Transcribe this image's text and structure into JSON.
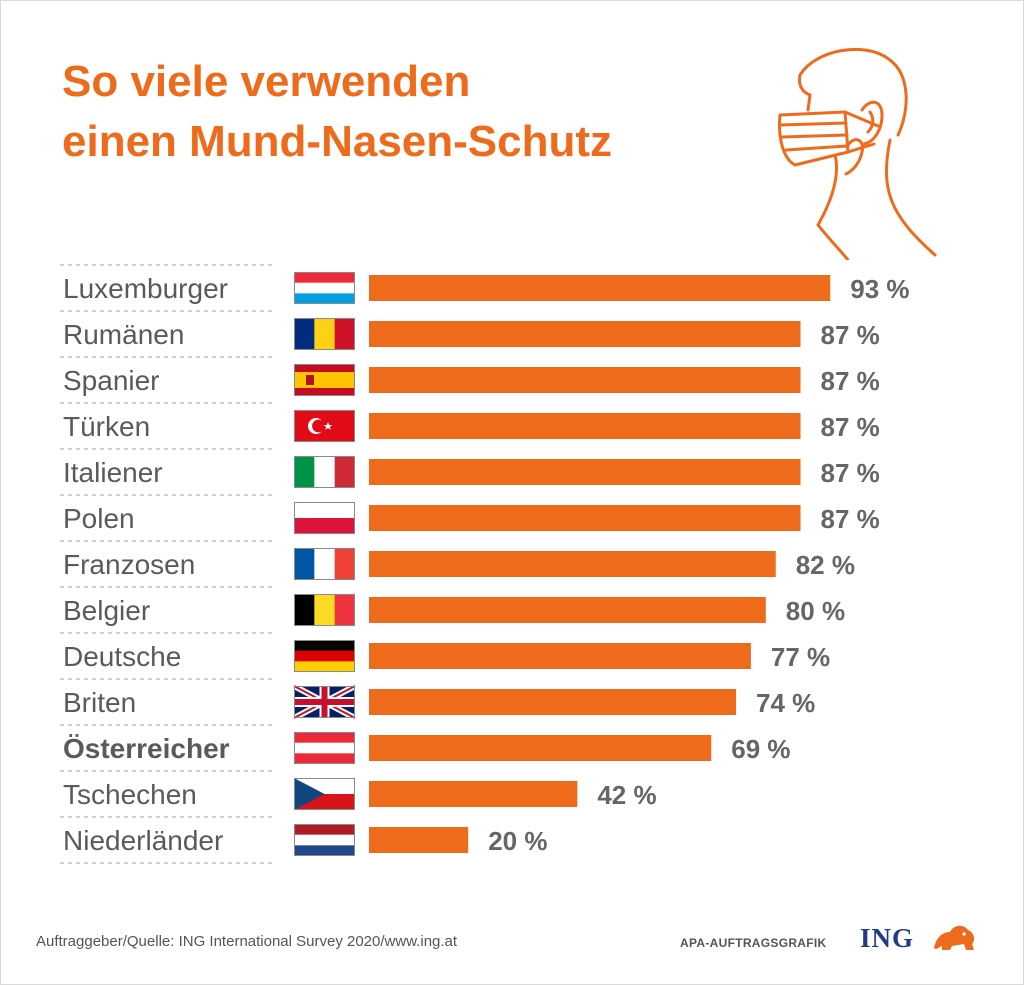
{
  "title": {
    "line1": "So viele verwenden",
    "line2": "einen Mund-Nasen-Schutz"
  },
  "colors": {
    "accent": "#ee6b1b",
    "label": "#5a5a5a",
    "value": "#666666",
    "brand": "#1f3c88"
  },
  "chart_data": {
    "type": "bar",
    "orientation": "horizontal",
    "title": "So viele verwenden einen Mund-Nasen-Schutz",
    "unit": "%",
    "xlim": [
      0,
      100
    ],
    "grid": false,
    "categories": [
      "Luxemburger",
      "Rumänen",
      "Spanier",
      "Türken",
      "Italiener",
      "Polen",
      "Franzosen",
      "Belgier",
      "Deutsche",
      "Briten",
      "Österreicher",
      "Tschechen",
      "Niederländer"
    ],
    "values": [
      93,
      87,
      87,
      87,
      87,
      87,
      82,
      80,
      77,
      74,
      69,
      42,
      20
    ],
    "value_labels": [
      "93 %",
      "87 %",
      "87 %",
      "87 %",
      "87 %",
      "87 %",
      "82 %",
      "80 %",
      "77 %",
      "74 %",
      "69 %",
      "42 %",
      "20 %"
    ],
    "highlighted": "Österreicher",
    "flags": [
      "luxembourg-flag",
      "romania-flag",
      "spain-flag",
      "turkey-flag",
      "italy-flag",
      "poland-flag",
      "france-flag",
      "belgium-flag",
      "germany-flag",
      "uk-flag",
      "austria-flag",
      "czech-flag",
      "netherlands-flag"
    ]
  },
  "footer": {
    "source": "Auftraggeber/Quelle: ING International Survey 2020/www.ing.at",
    "credit": "APA-AUFTRAGSGRAFIK",
    "brand": "ING"
  },
  "icons": [
    "masked-person-icon",
    "ing-lion-icon"
  ]
}
